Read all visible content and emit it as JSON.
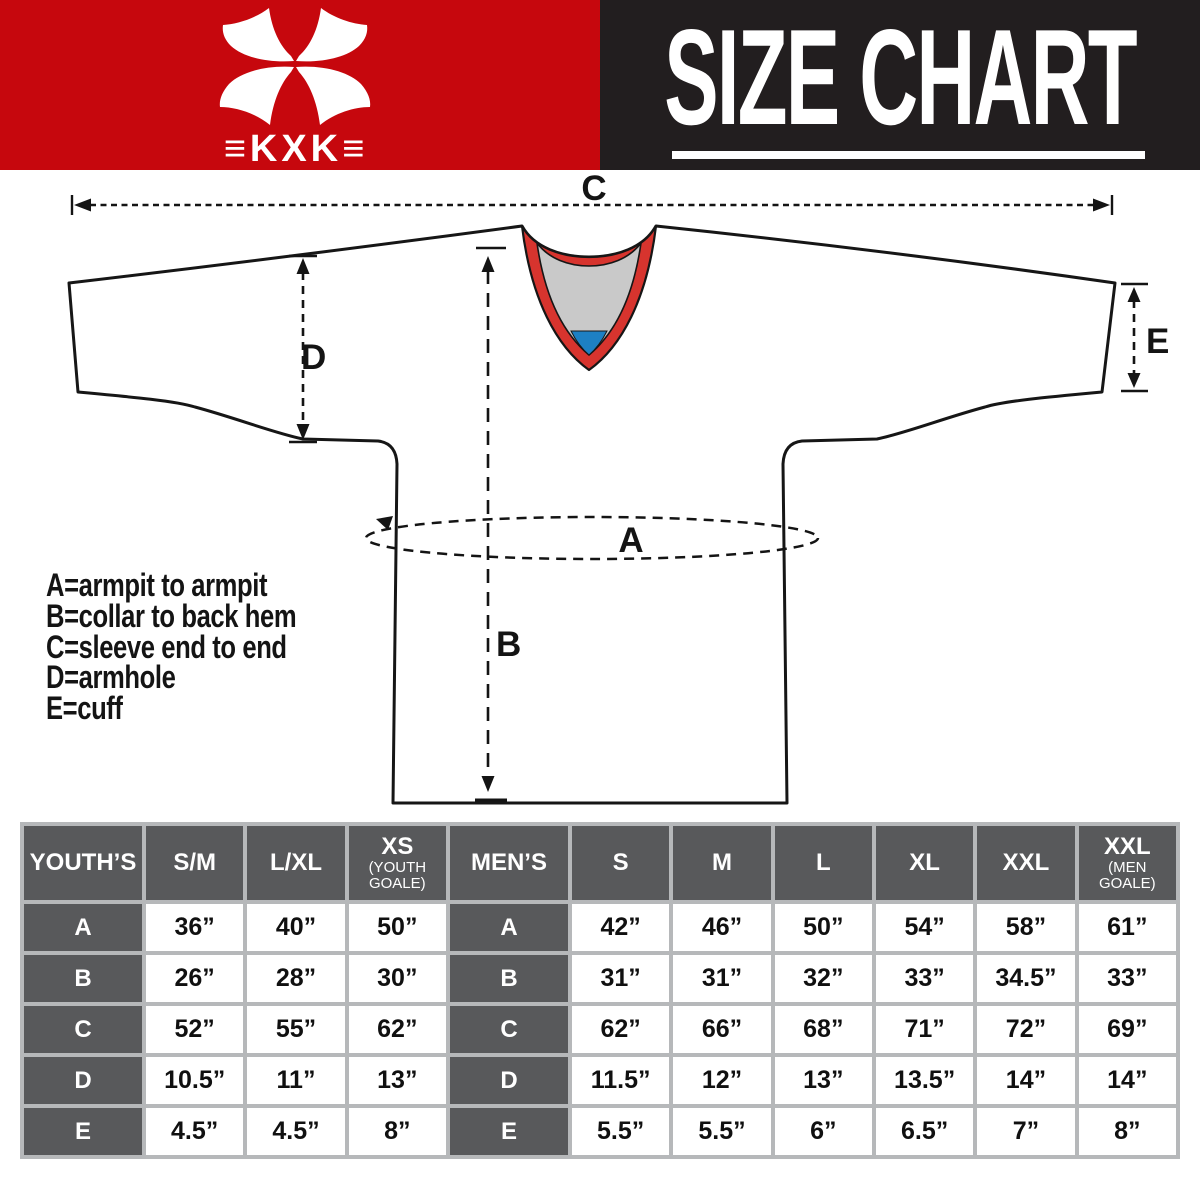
{
  "header": {
    "title": "SIZE CHART",
    "logo": {
      "brand_text": "≡KXK≡"
    },
    "colors": {
      "banner_red": "#c6070d",
      "banner_black": "#221e1f",
      "text_white": "#ffffff"
    }
  },
  "diagram": {
    "dimension_labels": {
      "A": "A",
      "B": "B",
      "C": "C",
      "D": "D",
      "E": "E"
    },
    "legend": [
      "A=armpit to armpit",
      "B=collar to back hem",
      "C=sleeve end to end",
      "D=armhole",
      "E=cuff"
    ],
    "colors": {
      "outline_black": "#161616",
      "collar_trim_red": "#d7342e",
      "collar_inner_gray": "#c9c9c9",
      "collar_bottom_blue": "#1d80c3"
    }
  },
  "size_table": {
    "colors": {
      "header_gray": "#58595b",
      "grid_gray": "#b6b8ba",
      "cell_white": "#ffffff"
    },
    "columns": [
      {
        "label": "YOUTH’S",
        "type": "label"
      },
      {
        "label": "S/M"
      },
      {
        "label": "L/XL"
      },
      {
        "label": "XS",
        "sub": "(YOUTH GOALE)"
      },
      {
        "label": "MEN’S",
        "type": "label"
      },
      {
        "label": "S"
      },
      {
        "label": "M"
      },
      {
        "label": "L"
      },
      {
        "label": "XL"
      },
      {
        "label": "XXL"
      },
      {
        "label": "XXL",
        "sub": "(MEN GOALE)"
      }
    ],
    "label_col_indexes": [
      0,
      4
    ],
    "rows": [
      {
        "cells": [
          "A",
          "36”",
          "40”",
          "50”",
          "A",
          "42”",
          "46”",
          "50”",
          "54”",
          "58”",
          "61”"
        ]
      },
      {
        "cells": [
          "B",
          "26”",
          "28”",
          "30”",
          "B",
          "31”",
          "31”",
          "32”",
          "33”",
          "34.5”",
          "33”"
        ]
      },
      {
        "cells": [
          "C",
          "52”",
          "55”",
          "62”",
          "C",
          "62”",
          "66”",
          "68”",
          "71”",
          "72”",
          "69”"
        ]
      },
      {
        "cells": [
          "D",
          "10.5”",
          "11”",
          "13”",
          "D",
          "11.5”",
          "12”",
          "13”",
          "13.5”",
          "14”",
          "14”"
        ]
      },
      {
        "cells": [
          "E",
          "4.5”",
          "4.5”",
          "8”",
          "E",
          "5.5”",
          "5.5”",
          "6”",
          "6.5”",
          "7”",
          "8”"
        ]
      }
    ]
  }
}
